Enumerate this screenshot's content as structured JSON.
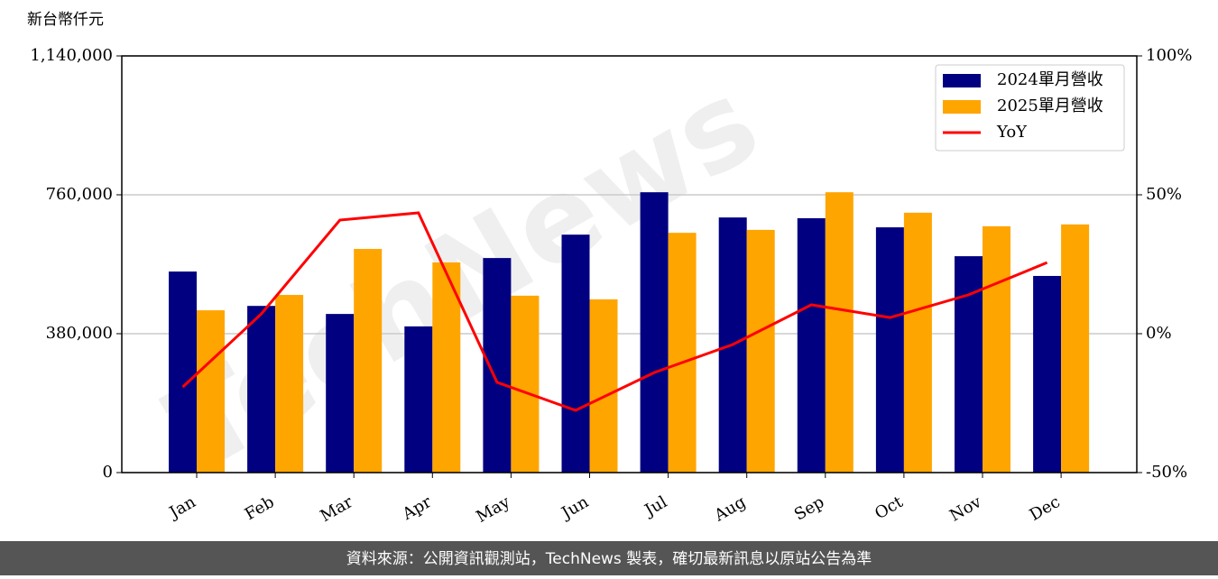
{
  "chart_data": {
    "type": "bar_line",
    "y_label": "新台幣仟元",
    "categories": [
      "Jan",
      "Feb",
      "Mar",
      "Apr",
      "May",
      "Jun",
      "Jul",
      "Aug",
      "Sep",
      "Oct",
      "Nov",
      "Dec"
    ],
    "series": [
      {
        "name": "2024單月營收",
        "color": "#000080",
        "type": "bar",
        "values": [
          550000,
          456000,
          434000,
          400000,
          587000,
          651000,
          767000,
          698000,
          696000,
          671000,
          592000,
          538000
        ]
      },
      {
        "name": "2025單月營收",
        "color": "#ffa500",
        "type": "bar",
        "values": [
          444000,
          486000,
          612000,
          575000,
          484000,
          474000,
          656000,
          664000,
          767000,
          711000,
          674000,
          679000
        ]
      },
      {
        "name": "YoY",
        "color": "#ff0000",
        "type": "line",
        "axis": "y2",
        "values": [
          -19.2,
          7.1,
          40.9,
          43.5,
          -17.5,
          -27.6,
          -14.0,
          -3.9,
          10.4,
          5.8,
          14.0,
          25.6
        ]
      }
    ],
    "ylim": [
      0,
      1140000
    ],
    "yticks": [
      0,
      {
        "value": 380000,
        "label": "380,000"
      },
      {
        "value": 760000,
        "label": "760,000"
      },
      {
        "value": 1140000,
        "label": "1,140,000"
      }
    ],
    "y2lim": [
      -50,
      100
    ],
    "y2ticks": [
      {
        "value": -50,
        "label": "-50%"
      },
      {
        "value": 0,
        "label": "0%"
      },
      {
        "value": 50,
        "label": "50%"
      },
      {
        "value": 100,
        "label": "100%"
      }
    ],
    "grid": true,
    "legend": "upper right",
    "watermark": "TechNews",
    "footer": "資料來源：公開資訊觀測站，TechNews 製表，確切最新訊息以原站公告為準"
  }
}
